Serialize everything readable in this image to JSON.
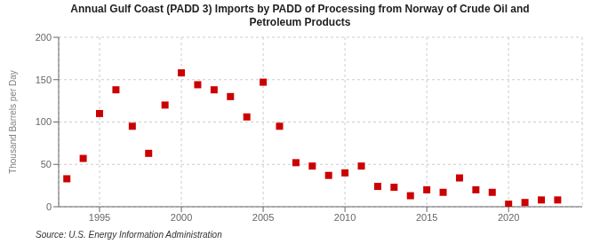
{
  "chart_data": {
    "type": "scatter",
    "title": "Annual Gulf Coast (PADD 3) Imports by PADD of Processing from Norway of Crude Oil and\nPetroleum Products",
    "ylabel": "Thousand Barrels per Day",
    "source": "Source: U.S. Energy Information Administration",
    "color": "#cc0000",
    "marker": "square",
    "grid": true,
    "xlim": [
      1992.5,
      2024.5
    ],
    "ylim": [
      0,
      200
    ],
    "yticks": [
      0,
      50,
      100,
      150,
      200
    ],
    "xticks": [
      1995,
      2000,
      2005,
      2010,
      2015,
      2020
    ],
    "x": [
      1993,
      1994,
      1995,
      1996,
      1997,
      1998,
      1999,
      2000,
      2001,
      2002,
      2003,
      2004,
      2005,
      2006,
      2007,
      2008,
      2009,
      2010,
      2011,
      2012,
      2013,
      2014,
      2015,
      2016,
      2017,
      2018,
      2019,
      2020,
      2021,
      2022,
      2023
    ],
    "values": [
      33,
      57,
      110,
      138,
      95,
      63,
      120,
      158,
      144,
      138,
      130,
      106,
      147,
      95,
      52,
      48,
      37,
      40,
      48,
      24,
      23,
      13,
      20,
      17,
      34,
      20,
      17,
      3,
      5,
      8,
      8
    ]
  }
}
